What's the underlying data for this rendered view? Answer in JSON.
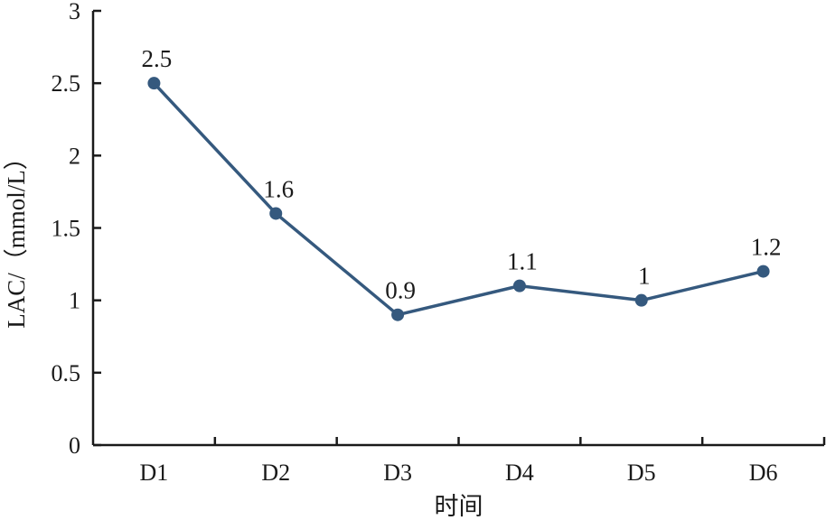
{
  "chart_data": {
    "type": "line",
    "categories": [
      "D1",
      "D2",
      "D3",
      "D4",
      "D5",
      "D6"
    ],
    "values": [
      2.5,
      1.6,
      0.9,
      1.1,
      1,
      1.2
    ],
    "data_labels": [
      "2.5",
      "1.6",
      "0.9",
      "1.1",
      "1",
      "1.2"
    ],
    "y_ticks": [
      0,
      0.5,
      1,
      1.5,
      2,
      2.5,
      3
    ],
    "y_tick_labels": [
      "0",
      "0.5",
      "1",
      "1.5",
      "2",
      "2.5",
      "3"
    ],
    "ylim": [
      0,
      3
    ],
    "xlabel": "时间",
    "ylabel": "LAC/（mmol/L）",
    "grid": false,
    "legend": "none",
    "colors": {
      "series": "#35597e",
      "axis": "#1a1a1a"
    }
  }
}
